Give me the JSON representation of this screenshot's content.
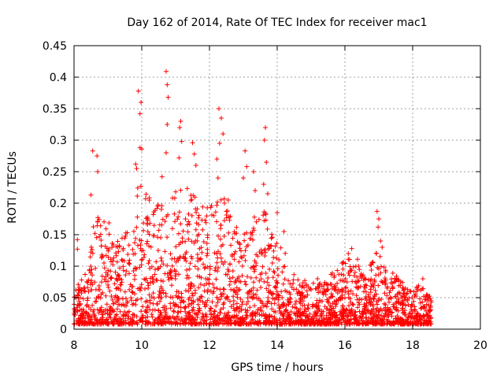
{
  "chart_data": {
    "type": "scatter",
    "title": "Day 162 of 2014, Rate Of TEC Index for receiver mac1",
    "xlabel": "GPS time / hours",
    "ylabel": "ROTI / TECUs",
    "xlim": [
      8,
      20
    ],
    "ylim": [
      0,
      0.45
    ],
    "xticks": [
      8,
      10,
      12,
      14,
      16,
      18,
      20
    ],
    "xtick_labels": [
      "8",
      "10",
      "12",
      "14",
      "16",
      "18",
      "20"
    ],
    "yticks": [
      0,
      0.05,
      0.1,
      0.15,
      0.2,
      0.25,
      0.3,
      0.35,
      0.4,
      0.45
    ],
    "ytick_labels": [
      "0",
      "0.05",
      "0.1",
      "0.15",
      "0.2",
      "0.25",
      "0.3",
      "0.35",
      "0.4",
      "0.45"
    ],
    "grid": true,
    "marker": "plus",
    "series": [
      {
        "name": "ROTI",
        "color": "#ff0000",
        "peaks": [
          {
            "x": 8.55,
            "y": 0.283
          },
          {
            "x": 8.5,
            "y": 0.213
          },
          {
            "x": 8.68,
            "y": 0.275
          },
          {
            "x": 8.7,
            "y": 0.25
          },
          {
            "x": 8.1,
            "y": 0.142
          },
          {
            "x": 8.1,
            "y": 0.127
          },
          {
            "x": 9.9,
            "y": 0.378
          },
          {
            "x": 9.95,
            "y": 0.342
          },
          {
            "x": 9.98,
            "y": 0.36
          },
          {
            "x": 9.95,
            "y": 0.288
          },
          {
            "x": 10.0,
            "y": 0.286
          },
          {
            "x": 9.82,
            "y": 0.262
          },
          {
            "x": 9.85,
            "y": 0.255
          },
          {
            "x": 10.72,
            "y": 0.409
          },
          {
            "x": 10.75,
            "y": 0.388
          },
          {
            "x": 10.78,
            "y": 0.368
          },
          {
            "x": 10.75,
            "y": 0.325
          },
          {
            "x": 10.72,
            "y": 0.28
          },
          {
            "x": 10.6,
            "y": 0.242
          },
          {
            "x": 11.15,
            "y": 0.33
          },
          {
            "x": 11.12,
            "y": 0.32
          },
          {
            "x": 11.18,
            "y": 0.298
          },
          {
            "x": 11.1,
            "y": 0.272
          },
          {
            "x": 11.5,
            "y": 0.296
          },
          {
            "x": 11.55,
            "y": 0.278
          },
          {
            "x": 11.6,
            "y": 0.26
          },
          {
            "x": 12.28,
            "y": 0.35
          },
          {
            "x": 12.35,
            "y": 0.335
          },
          {
            "x": 12.4,
            "y": 0.31
          },
          {
            "x": 12.3,
            "y": 0.295
          },
          {
            "x": 12.22,
            "y": 0.27
          },
          {
            "x": 12.25,
            "y": 0.24
          },
          {
            "x": 13.05,
            "y": 0.283
          },
          {
            "x": 13.1,
            "y": 0.258
          },
          {
            "x": 13.0,
            "y": 0.24
          },
          {
            "x": 13.65,
            "y": 0.32
          },
          {
            "x": 13.62,
            "y": 0.3
          },
          {
            "x": 13.68,
            "y": 0.265
          },
          {
            "x": 13.6,
            "y": 0.23
          },
          {
            "x": 13.72,
            "y": 0.215
          },
          {
            "x": 13.3,
            "y": 0.25
          },
          {
            "x": 13.35,
            "y": 0.22
          },
          {
            "x": 12.55,
            "y": 0.205
          },
          {
            "x": 14.0,
            "y": 0.185
          },
          {
            "x": 14.2,
            "y": 0.155
          },
          {
            "x": 16.95,
            "y": 0.187
          },
          {
            "x": 17.0,
            "y": 0.175
          },
          {
            "x": 16.98,
            "y": 0.162
          },
          {
            "x": 17.05,
            "y": 0.14
          },
          {
            "x": 17.1,
            "y": 0.13
          },
          {
            "x": 18.3,
            "y": 0.08
          },
          {
            "x": 16.2,
            "y": 0.128
          },
          {
            "x": 16.1,
            "y": 0.12
          }
        ],
        "envelope": [
          {
            "x": 8.0,
            "y": 0.06
          },
          {
            "x": 8.4,
            "y": 0.1
          },
          {
            "x": 8.6,
            "y": 0.19
          },
          {
            "x": 8.8,
            "y": 0.17
          },
          {
            "x": 9.0,
            "y": 0.18
          },
          {
            "x": 9.3,
            "y": 0.14
          },
          {
            "x": 9.6,
            "y": 0.16
          },
          {
            "x": 9.9,
            "y": 0.24
          },
          {
            "x": 10.2,
            "y": 0.21
          },
          {
            "x": 10.5,
            "y": 0.2
          },
          {
            "x": 10.8,
            "y": 0.2
          },
          {
            "x": 11.1,
            "y": 0.24
          },
          {
            "x": 11.4,
            "y": 0.22
          },
          {
            "x": 11.7,
            "y": 0.21
          },
          {
            "x": 12.0,
            "y": 0.19
          },
          {
            "x": 12.3,
            "y": 0.23
          },
          {
            "x": 12.6,
            "y": 0.2
          },
          {
            "x": 12.9,
            "y": 0.15
          },
          {
            "x": 13.2,
            "y": 0.17
          },
          {
            "x": 13.5,
            "y": 0.19
          },
          {
            "x": 13.8,
            "y": 0.18
          },
          {
            "x": 14.1,
            "y": 0.15
          },
          {
            "x": 14.4,
            "y": 0.09
          },
          {
            "x": 14.8,
            "y": 0.08
          },
          {
            "x": 15.2,
            "y": 0.08
          },
          {
            "x": 15.6,
            "y": 0.09
          },
          {
            "x": 16.0,
            "y": 0.11
          },
          {
            "x": 16.3,
            "y": 0.12
          },
          {
            "x": 16.6,
            "y": 0.09
          },
          {
            "x": 17.0,
            "y": 0.13
          },
          {
            "x": 17.3,
            "y": 0.1
          },
          {
            "x": 17.6,
            "y": 0.08
          },
          {
            "x": 18.0,
            "y": 0.06
          },
          {
            "x": 18.3,
            "y": 0.08
          },
          {
            "x": 18.55,
            "y": 0.05
          }
        ],
        "x_range": [
          8.0,
          18.55
        ],
        "background_points": 2600
      }
    ]
  }
}
